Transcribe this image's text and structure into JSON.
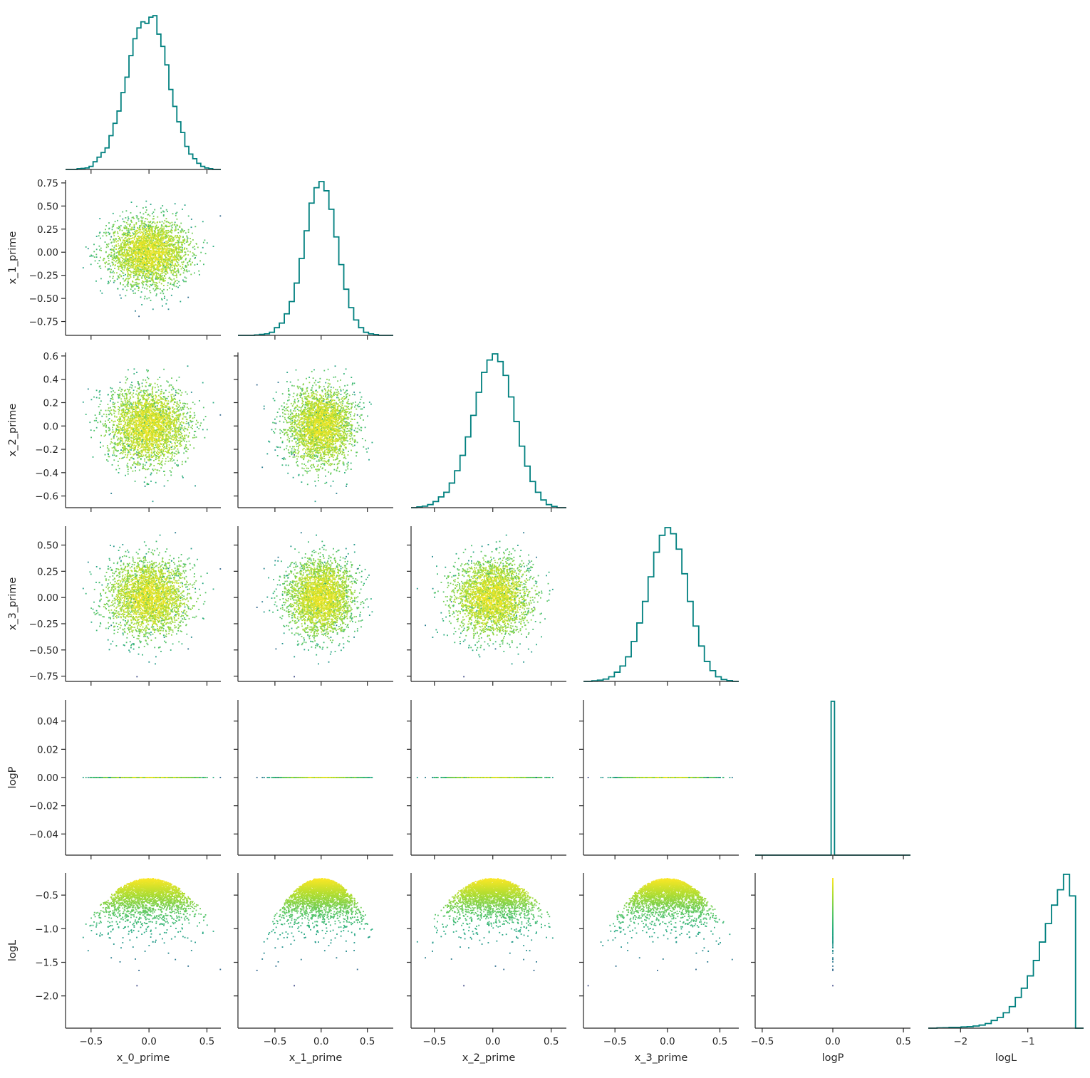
{
  "chart_data": {
    "type": "scatter",
    "layout": "corner-pairplot",
    "variables": [
      "x_0_prime",
      "x_1_prime",
      "x_2_prime",
      "x_3_prime",
      "logP",
      "logL"
    ],
    "diagonal": "step-histogram",
    "hist_color": "#00807f",
    "colormap": "viridis",
    "color_by": "logL",
    "axes": {
      "x_0_prime": {
        "range": [
          -0.72,
          0.62
        ],
        "ticks": [
          -0.5,
          0.0,
          0.5
        ],
        "tick_labels": [
          "−0.5",
          "0.0",
          "0.5"
        ]
      },
      "x_1_prime": {
        "range": [
          -0.9,
          0.78
        ],
        "ticks": [
          -0.5,
          0.0,
          0.5
        ],
        "tick_labels": [
          "−0.5",
          "0.0",
          "0.5"
        ],
        "y_ticks": [
          -0.75,
          -0.5,
          -0.25,
          0.0,
          0.25,
          0.5,
          0.75
        ],
        "y_tick_labels": [
          "−0.75",
          "−0.50",
          "−0.25",
          "0.00",
          "0.25",
          "0.50",
          "0.75"
        ]
      },
      "x_2_prime": {
        "range": [
          -0.7,
          0.63
        ],
        "ticks": [
          -0.5,
          0.0,
          0.5
        ],
        "tick_labels": [
          "−0.5",
          "0.0",
          "0.5"
        ],
        "y_ticks": [
          -0.6,
          -0.4,
          -0.2,
          0.0,
          0.2,
          0.4,
          0.6
        ],
        "y_tick_labels": [
          "−0.6",
          "−0.4",
          "−0.2",
          "0.0",
          "0.2",
          "0.4",
          "0.6"
        ]
      },
      "x_3_prime": {
        "range": [
          -0.8,
          0.68
        ],
        "ticks": [
          -0.5,
          0.0,
          0.5
        ],
        "tick_labels": [
          "−0.5",
          "0.0",
          "0.5"
        ],
        "y_ticks": [
          -0.75,
          -0.5,
          -0.25,
          0.0,
          0.25,
          0.5
        ],
        "y_tick_labels": [
          "−0.75",
          "−0.50",
          "−0.25",
          "0.00",
          "0.25",
          "0.50"
        ]
      },
      "logP": {
        "range": [
          -0.055,
          0.055
        ],
        "ticks": [
          -0.5,
          0.0,
          0.5
        ],
        "tick_labels": [
          "−0.5",
          "0.0",
          "0.5"
        ],
        "x_range": [
          -0.55,
          0.55
        ],
        "y_ticks": [
          -0.04,
          -0.02,
          0.0,
          0.02,
          0.04
        ],
        "y_tick_labels": [
          "−0.04",
          "−0.02",
          "0.00",
          "0.02",
          "0.04"
        ]
      },
      "logL": {
        "range": [
          -2.48,
          -0.17
        ],
        "ticks": [
          -2,
          -1
        ],
        "tick_labels": [
          "−2",
          "−1"
        ],
        "y_ticks": [
          -2.0,
          -1.5,
          -1.0,
          -0.5
        ],
        "y_tick_labels": [
          "−2.0",
          "−1.5",
          "−1.0",
          "−0.5"
        ]
      }
    },
    "histograms": {
      "x_0_prime": {
        "bins": [
          -0.62,
          0.55
        ],
        "density": [
          0.005,
          0.007,
          0.01,
          0.02,
          0.05,
          0.08,
          0.11,
          0.14,
          0.22,
          0.3,
          0.38,
          0.5,
          0.6,
          0.74,
          0.85,
          0.92,
          0.96,
          0.95,
          0.99,
          1.0,
          0.88,
          0.8,
          0.68,
          0.52,
          0.41,
          0.31,
          0.24,
          0.15,
          0.1,
          0.07,
          0.04,
          0.02,
          0.01,
          0.005
        ]
      },
      "x_1_prime": {
        "bins": [
          -0.72,
          0.62
        ],
        "density": [
          0.003,
          0.006,
          0.01,
          0.02,
          0.05,
          0.08,
          0.14,
          0.22,
          0.34,
          0.5,
          0.68,
          0.86,
          0.96,
          1.0,
          0.94,
          0.82,
          0.64,
          0.46,
          0.3,
          0.18,
          0.1,
          0.05,
          0.02,
          0.01,
          0.005
        ]
      },
      "x_2_prime": {
        "bins": [
          -0.65,
          0.55
        ],
        "density": [
          0.005,
          0.01,
          0.02,
          0.04,
          0.07,
          0.1,
          0.16,
          0.24,
          0.34,
          0.46,
          0.6,
          0.75,
          0.88,
          0.96,
          1.0,
          0.95,
          0.86,
          0.72,
          0.56,
          0.4,
          0.27,
          0.17,
          0.1,
          0.05,
          0.02,
          0.008
        ]
      },
      "x_3_prime": {
        "bins": [
          -0.72,
          0.62
        ],
        "density": [
          0.004,
          0.008,
          0.015,
          0.03,
          0.06,
          0.1,
          0.16,
          0.26,
          0.38,
          0.52,
          0.68,
          0.84,
          0.95,
          1.0,
          0.96,
          0.86,
          0.7,
          0.52,
          0.36,
          0.23,
          0.13,
          0.07,
          0.03,
          0.012,
          0.005
        ]
      },
      "logP": {
        "bins": [
          -0.012,
          0.012
        ],
        "density": [
          1.0
        ]
      },
      "logL": {
        "bins": [
          -2.35,
          -0.2
        ],
        "density": [
          0.002,
          0.003,
          0.005,
          0.005,
          0.008,
          0.01,
          0.014,
          0.02,
          0.03,
          0.05,
          0.07,
          0.1,
          0.14,
          0.2,
          0.26,
          0.34,
          0.44,
          0.56,
          0.68,
          0.8,
          0.9,
          1.0,
          0.86,
          0.0
        ]
      }
    },
    "samples": {
      "count": 3000,
      "spread": {
        "x_0_prime": 0.17,
        "x_1_prime": 0.18,
        "x_2_prime": 0.16,
        "x_3_prime": 0.18
      },
      "logL_model": "logL = -0.25 - 2.2 * sum(x_i_prime^2)",
      "logP_value": 0.0
    }
  }
}
